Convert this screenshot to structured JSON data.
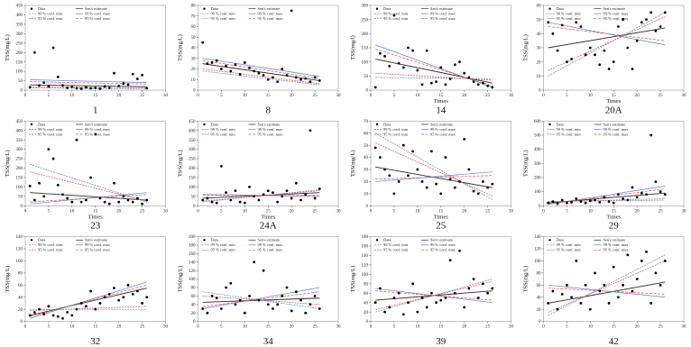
{
  "legend": {
    "data": "Data",
    "sen": "Sen's estimate",
    "c99min": "99 % conf. min",
    "c99max": "99 % conf. max",
    "c95min": "95 % conf. min",
    "c95max": "95 % conf. max"
  },
  "series_colors": {
    "data": "#000000",
    "sen": "#2b2b2b",
    "c99min": "#5b7fd6",
    "c99max": "#5b7fd6",
    "c95min": "#e04a4a",
    "c95max": "#e04a4a"
  },
  "chart_data": [
    {
      "type": "scatter",
      "caption": "1",
      "ylabel": "TSS(mg/L)",
      "xlabel": "",
      "ylim": [
        0,
        450
      ],
      "yticks": [
        0,
        50,
        100,
        150,
        200,
        250,
        300,
        350,
        400,
        450
      ],
      "xlim": [
        0,
        30
      ],
      "xticks": [
        0,
        5,
        10,
        15,
        20,
        25,
        30
      ],
      "x": [
        1,
        2,
        3,
        4,
        5,
        6,
        7,
        8,
        9,
        10,
        11,
        12,
        13,
        14,
        15,
        16,
        17,
        18,
        19,
        20,
        21,
        22,
        23,
        24,
        25,
        26
      ],
      "y": [
        15,
        200,
        25,
        40,
        20,
        225,
        70,
        25,
        12,
        18,
        10,
        8,
        15,
        10,
        12,
        8,
        20,
        12,
        90,
        22,
        35,
        30,
        85,
        60,
        80,
        10
      ],
      "lines": {
        "sen": [
          28,
          18
        ],
        "c99min": [
          12,
          8
        ],
        "c99max": [
          55,
          40
        ],
        "c95min": [
          16,
          10
        ],
        "c95max": [
          45,
          32
        ]
      }
    },
    {
      "type": "scatter",
      "caption": "8",
      "ylabel": "TSS(mg/L)",
      "xlabel": "",
      "ylim": [
        0,
        80
      ],
      "yticks": [
        0,
        10,
        20,
        30,
        40,
        50,
        60,
        70,
        80
      ],
      "xlim": [
        0,
        30
      ],
      "xticks": [
        0,
        5,
        10,
        15,
        20,
        25,
        30
      ],
      "x": [
        1,
        2,
        3,
        4,
        5,
        6,
        7,
        8,
        9,
        10,
        11,
        12,
        13,
        14,
        15,
        16,
        17,
        18,
        19,
        20,
        21,
        22,
        23,
        24,
        25,
        26
      ],
      "y": [
        45,
        25,
        26,
        28,
        20,
        23,
        18,
        24,
        15,
        26,
        21,
        18,
        16,
        14,
        10,
        12,
        8,
        20,
        14,
        75,
        12,
        10,
        11,
        8,
        12,
        9
      ],
      "lines": {
        "sen": [
          25,
          9
        ],
        "c99min": [
          18,
          5
        ],
        "c99max": [
          30,
          13
        ],
        "c95min": [
          20,
          6
        ],
        "c95max": [
          28,
          11
        ]
      }
    },
    {
      "type": "scatter",
      "caption": "14",
      "ylabel": "TSS(mg/l)",
      "xlabel": "Times",
      "ylim": [
        0,
        300
      ],
      "yticks": [
        0,
        50,
        100,
        150,
        200,
        250,
        300
      ],
      "xlim": [
        0,
        30
      ],
      "xticks": [
        0,
        5,
        10,
        15,
        20,
        25,
        30
      ],
      "x": [
        1,
        2,
        3,
        4,
        5,
        6,
        7,
        8,
        9,
        10,
        11,
        12,
        13,
        14,
        15,
        16,
        17,
        18,
        19,
        20,
        21,
        22,
        23,
        24,
        25,
        26
      ],
      "y": [
        10,
        130,
        120,
        85,
        265,
        95,
        80,
        150,
        140,
        70,
        20,
        140,
        25,
        30,
        80,
        20,
        40,
        90,
        100,
        60,
        45,
        30,
        20,
        25,
        15,
        10
      ],
      "lines": {
        "sen": [
          110,
          25
        ],
        "c99min": [
          45,
          40
        ],
        "c99max": [
          160,
          10
        ],
        "c95min": [
          60,
          35
        ],
        "c95max": [
          145,
          15
        ]
      }
    },
    {
      "type": "scatter",
      "caption": "20A",
      "ylabel": "TSS(mg/L)",
      "xlabel": "Times",
      "ylim": [
        0,
        60
      ],
      "yticks": [
        0,
        10,
        20,
        30,
        40,
        50,
        60
      ],
      "xlim": [
        0,
        30
      ],
      "xticks": [
        0,
        5,
        10,
        15,
        20,
        25,
        30
      ],
      "x": [
        1,
        2,
        3,
        4,
        5,
        6,
        7,
        8,
        9,
        10,
        11,
        12,
        13,
        14,
        15,
        16,
        17,
        18,
        19,
        20,
        21,
        22,
        23,
        24,
        25,
        26
      ],
      "y": [
        48,
        40,
        28,
        46,
        20,
        22,
        48,
        45,
        25,
        30,
        25,
        18,
        28,
        15,
        20,
        45,
        50,
        30,
        15,
        35,
        48,
        50,
        55,
        42,
        45,
        55
      ],
      "lines": {
        "sen": [
          30,
          44
        ],
        "c99min": [
          10,
          55
        ],
        "c99max": [
          48,
          32
        ],
        "c95min": [
          14,
          52
        ],
        "c95max": [
          45,
          35
        ]
      }
    },
    {
      "type": "scatter",
      "caption": "23",
      "ylabel": "TSS(mg/L)",
      "xlabel": "Times",
      "ylim": [
        0,
        450
      ],
      "yticks": [
        0,
        50,
        100,
        150,
        200,
        250,
        300,
        350,
        400,
        450
      ],
      "xlim": [
        0,
        30
      ],
      "xticks": [
        0,
        5,
        10,
        15,
        20,
        25,
        30
      ],
      "x": [
        1,
        2,
        3,
        4,
        5,
        6,
        7,
        8,
        9,
        10,
        11,
        12,
        13,
        14,
        15,
        16,
        17,
        18,
        19,
        20,
        21,
        22,
        23,
        24,
        25,
        26
      ],
      "y": [
        105,
        30,
        120,
        50,
        300,
        250,
        110,
        60,
        40,
        20,
        350,
        20,
        30,
        150,
        380,
        40,
        20,
        10,
        120,
        20,
        50,
        30,
        20,
        40,
        10,
        30
      ],
      "lines": {
        "sen": [
          70,
          30
        ],
        "c99min": [
          220,
          20
        ],
        "c99max": [
          10,
          70
        ],
        "c95min": [
          180,
          25
        ],
        "c95max": [
          20,
          60
        ]
      }
    },
    {
      "type": "scatter",
      "caption": "24A",
      "ylabel": "TSS(mg/L)",
      "xlabel": "Times",
      "ylim": [
        0,
        450
      ],
      "yticks": [
        0,
        50,
        100,
        150,
        200,
        250,
        300,
        350,
        400,
        450
      ],
      "xlim": [
        0,
        30
      ],
      "xticks": [
        0,
        5,
        10,
        15,
        20,
        25,
        30
      ],
      "x": [
        1,
        2,
        3,
        4,
        5,
        6,
        7,
        8,
        9,
        10,
        11,
        12,
        13,
        14,
        15,
        16,
        17,
        18,
        19,
        20,
        21,
        22,
        23,
        24,
        25,
        26
      ],
      "y": [
        30,
        40,
        20,
        15,
        210,
        70,
        30,
        80,
        20,
        15,
        100,
        50,
        30,
        60,
        80,
        70,
        20,
        50,
        80,
        40,
        120,
        30,
        60,
        400,
        40,
        90
      ],
      "lines": {
        "sen": [
          40,
          70
        ],
        "c99min": [
          20,
          85
        ],
        "c99max": [
          60,
          50
        ],
        "c95min": [
          25,
          80
        ],
        "c95max": [
          55,
          55
        ]
      }
    },
    {
      "type": "scatter",
      "caption": "25",
      "ylabel": "TSS(mg/L)",
      "xlabel": "Times",
      "ylim": [
        0,
        70
      ],
      "yticks": [
        0,
        10,
        20,
        30,
        40,
        50,
        60,
        70
      ],
      "xlim": [
        0,
        30
      ],
      "xticks": [
        0,
        5,
        10,
        15,
        20,
        25,
        30
      ],
      "x": [
        1,
        2,
        3,
        4,
        5,
        6,
        7,
        8,
        9,
        10,
        11,
        12,
        13,
        14,
        15,
        16,
        17,
        18,
        19,
        20,
        21,
        22,
        23,
        24,
        25,
        26
      ],
      "y": [
        48,
        40,
        30,
        25,
        10,
        20,
        50,
        25,
        45,
        30,
        20,
        15,
        45,
        18,
        10,
        40,
        22,
        15,
        20,
        55,
        30,
        12,
        10,
        20,
        15,
        18
      ],
      "lines": {
        "sen": [
          32,
          15
        ],
        "c99min": [
          60,
          5
        ],
        "c99max": [
          20,
          28
        ],
        "c95min": [
          52,
          8
        ],
        "c95max": [
          22,
          25
        ]
      }
    },
    {
      "type": "scatter",
      "caption": "29",
      "ylabel": "TSS(mg/L)",
      "xlabel": "Times",
      "ylim": [
        0,
        600
      ],
      "yticks": [
        0,
        100,
        200,
        300,
        400,
        500,
        600
      ],
      "xlim": [
        0,
        30
      ],
      "xticks": [
        0,
        5,
        10,
        15,
        20,
        25,
        30
      ],
      "x": [
        1,
        2,
        3,
        4,
        5,
        6,
        7,
        8,
        9,
        10,
        11,
        12,
        13,
        14,
        15,
        16,
        17,
        18,
        19,
        20,
        21,
        22,
        23,
        24,
        25,
        26
      ],
      "y": [
        20,
        30,
        15,
        40,
        20,
        25,
        50,
        30,
        20,
        35,
        40,
        25,
        60,
        30,
        20,
        80,
        50,
        40,
        130,
        60,
        90,
        80,
        500,
        170,
        100,
        80
      ],
      "lines": {
        "sen": [
          20,
          90
        ],
        "c99min": [
          30,
          40
        ],
        "c99max": [
          10,
          140
        ],
        "c95min": [
          28,
          50
        ],
        "c95max": [
          12,
          120
        ]
      }
    },
    {
      "type": "scatter",
      "caption": "32",
      "ylabel": "TSS(mg/L)",
      "xlabel": "",
      "ylim": [
        0,
        140
      ],
      "yticks": [
        0,
        20,
        40,
        60,
        80,
        100,
        120,
        140
      ],
      "xlim": [
        0,
        30
      ],
      "xticks": [
        0,
        5,
        10,
        15,
        20,
        25,
        30
      ],
      "x": [
        1,
        2,
        3,
        4,
        5,
        6,
        7,
        8,
        9,
        10,
        11,
        12,
        13,
        14,
        15,
        16,
        17,
        18,
        19,
        20,
        21,
        22,
        23,
        24,
        25,
        26
      ],
      "y": [
        10,
        15,
        20,
        12,
        25,
        10,
        8,
        5,
        15,
        10,
        20,
        30,
        25,
        50,
        20,
        30,
        40,
        45,
        55,
        35,
        40,
        60,
        45,
        50,
        30,
        40
      ],
      "lines": {
        "sen": [
          10,
          55
        ],
        "c99min": [
          20,
          20
        ],
        "c99max": [
          5,
          65
        ],
        "c95min": [
          18,
          25
        ],
        "c95max": [
          8,
          60
        ]
      }
    },
    {
      "type": "scatter",
      "caption": "34",
      "ylabel": "TSS(mg/L)",
      "xlabel": "",
      "ylim": [
        0,
        200
      ],
      "yticks": [
        0,
        20,
        40,
        60,
        80,
        100,
        120,
        140,
        160,
        180,
        200
      ],
      "xlim": [
        0,
        30
      ],
      "xticks": [
        0,
        5,
        10,
        15,
        20,
        25,
        30
      ],
      "x": [
        1,
        2,
        3,
        4,
        5,
        6,
        7,
        8,
        9,
        10,
        11,
        12,
        13,
        14,
        15,
        16,
        17,
        18,
        19,
        20,
        21,
        22,
        23,
        24,
        25,
        26
      ],
      "y": [
        30,
        20,
        60,
        55,
        30,
        80,
        90,
        40,
        50,
        20,
        60,
        140,
        50,
        120,
        40,
        30,
        40,
        60,
        80,
        25,
        70,
        50,
        20,
        40,
        60,
        30
      ],
      "lines": {
        "sen": [
          45,
          55
        ],
        "c99min": [
          70,
          30
        ],
        "c99max": [
          30,
          80
        ],
        "c95min": [
          60,
          40
        ],
        "c95max": [
          35,
          70
        ]
      }
    },
    {
      "type": "scatter",
      "caption": "39",
      "ylabel": "TSS(mg/L)",
      "xlabel": "",
      "ylim": [
        0,
        180
      ],
      "yticks": [
        0,
        20,
        40,
        60,
        80,
        100,
        120,
        140,
        160,
        180
      ],
      "xlim": [
        0,
        30
      ],
      "xticks": [
        0,
        5,
        10,
        15,
        20,
        25,
        30
      ],
      "x": [
        1,
        2,
        3,
        4,
        5,
        6,
        7,
        8,
        9,
        10,
        11,
        12,
        13,
        14,
        15,
        16,
        17,
        18,
        19,
        20,
        21,
        22,
        23,
        24,
        25,
        26
      ],
      "y": [
        40,
        70,
        20,
        30,
        50,
        60,
        15,
        40,
        80,
        20,
        50,
        30,
        60,
        40,
        45,
        50,
        130,
        60,
        150,
        30,
        70,
        90,
        50,
        80,
        60,
        70
      ],
      "lines": {
        "sen": [
          45,
          65
        ],
        "c99min": [
          20,
          90
        ],
        "c99max": [
          70,
          40
        ],
        "c95min": [
          25,
          85
        ],
        "c95max": [
          65,
          45
        ]
      }
    },
    {
      "type": "scatter",
      "caption": "42",
      "ylabel": "TSS(mg/L)",
      "xlabel": "",
      "ylim": [
        0,
        140
      ],
      "yticks": [
        0,
        20,
        40,
        60,
        80,
        100,
        120,
        140
      ],
      "xlim": [
        0,
        30
      ],
      "xticks": [
        0,
        5,
        10,
        15,
        20,
        25,
        30
      ],
      "x": [
        1,
        2,
        3,
        4,
        5,
        6,
        7,
        8,
        9,
        10,
        11,
        12,
        13,
        14,
        15,
        16,
        17,
        18,
        19,
        20,
        21,
        22,
        23,
        24,
        25,
        26
      ],
      "y": [
        30,
        50,
        20,
        45,
        60,
        40,
        100,
        30,
        60,
        20,
        80,
        50,
        60,
        30,
        90,
        40,
        60,
        110,
        50,
        70,
        100,
        115,
        30,
        80,
        60,
        100
      ],
      "lines": {
        "sen": [
          30,
          65
        ],
        "c99min": [
          10,
          110
        ],
        "c99max": [
          60,
          40
        ],
        "c95min": [
          15,
          100
        ],
        "c95max": [
          55,
          45
        ]
      }
    }
  ]
}
